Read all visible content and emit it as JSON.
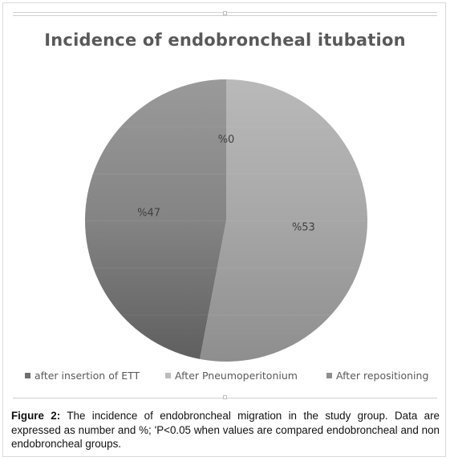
{
  "chart_data": {
    "type": "pie",
    "title": "Incidence of endobroncheal itubation",
    "slices": [
      {
        "name": "after insertion of ETT",
        "value": 0,
        "label": "%0",
        "color": "#6f6f6f"
      },
      {
        "name": "After Pneumoperitonium",
        "value": 53,
        "label": "%53",
        "color": "#bdbdbd"
      },
      {
        "name": "After repositioning",
        "value": 47,
        "label": "%47",
        "color": "#8f8f8f"
      }
    ],
    "legend_position": "bottom"
  },
  "caption": {
    "label": "Figure 2:",
    "text": "The incidence of endobroncheal migration in the study group. Data are expressed as number and %; ʹP<0.05 when values are compared endobroncheal and non endobroncheal groups."
  }
}
